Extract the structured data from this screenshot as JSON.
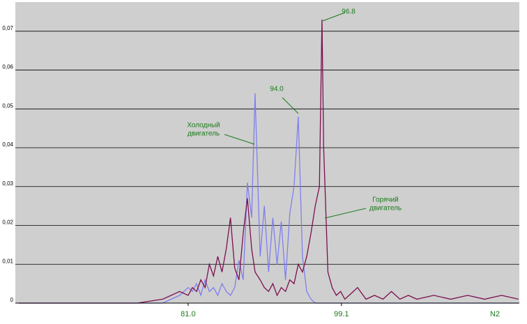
{
  "chart_data": {
    "type": "line",
    "x_label": "N2",
    "x": [
      61,
      65,
      70,
      75,
      78,
      79,
      80,
      81,
      81.5,
      82,
      82.5,
      83,
      83.5,
      84,
      84.5,
      85,
      85.5,
      86,
      86.5,
      87,
      87.5,
      88,
      88.5,
      88.9,
      89.5,
      90,
      90.5,
      91,
      91.5,
      92,
      92.5,
      93,
      93.5,
      94,
      94.5,
      95,
      95.5,
      96,
      96.5,
      96.8,
      97,
      97.5,
      98,
      98.5,
      99,
      99.5,
      100,
      101,
      102,
      103,
      104,
      105,
      106,
      107,
      108,
      110,
      112,
      114,
      116,
      118,
      120
    ],
    "series": [
      {
        "color": "#7f7fef",
        "values": [
          0,
          0,
          0,
          0,
          0,
          0.001,
          0.002,
          0.004,
          0.003,
          0.005,
          0.002,
          0.006,
          0.003,
          0.004,
          0.002,
          0.005,
          0.003,
          0.002,
          0.004,
          0.011,
          0.006,
          0.031,
          0.022,
          0.054,
          0.012,
          0.025,
          0.008,
          0.022,
          0.01,
          0.021,
          0.006,
          0.023,
          0.03,
          0.048,
          0.012,
          0.003,
          0.001,
          0,
          0,
          0,
          0,
          0,
          0,
          0,
          0,
          0,
          0,
          0,
          0,
          0,
          0,
          0,
          0,
          0,
          0,
          0,
          0,
          0,
          0,
          0,
          0
        ]
      },
      {
        "color": "#7b0f4f",
        "values": [
          0,
          0,
          0,
          0,
          0.001,
          0.002,
          0.003,
          0.002,
          0.004,
          0.003,
          0.006,
          0.004,
          0.01,
          0.007,
          0.012,
          0.008,
          0.014,
          0.022,
          0.009,
          0.006,
          0.018,
          0.027,
          0.014,
          0.008,
          0.006,
          0.004,
          0.003,
          0.005,
          0.002,
          0.004,
          0.003,
          0.006,
          0.005,
          0.01,
          0.008,
          0.012,
          0.018,
          0.025,
          0.03,
          0.073,
          0.04,
          0.008,
          0.004,
          0.002,
          0.003,
          0.001,
          0.002,
          0.004,
          0.001,
          0.002,
          0.001,
          0.003,
          0.001,
          0.002,
          0.001,
          0.002,
          0.001,
          0.002,
          0.001,
          0.002,
          0.001
        ]
      }
    ],
    "xlim": [
      60.6,
      120.1
    ],
    "xticks": [
      {
        "value": 81,
        "label": "81.0"
      },
      99.1
    ],
    "ylim": [
      0,
      0.0775
    ],
    "yticks": [
      0,
      {
        "value": 0.01,
        "label": "0,01"
      },
      {
        "value": 0.02,
        "label": "0,02"
      },
      {
        "value": 0.03,
        "label": "0,03"
      },
      {
        "value": 0.04,
        "label": "0,04"
      },
      {
        "value": 0.05,
        "label": "0,05"
      },
      {
        "value": 0.06,
        "label": "0,06"
      },
      {
        "value": 0.07,
        "label": "0,07"
      }
    ],
    "grid": true,
    "background": "#cfcfcf",
    "annotations": [
      {
        "lines": [
          "96.8"
        ]
      },
      {
        "lines": [
          "94.0"
        ]
      },
      {
        "lines": [
          "Холодный",
          "двигатель"
        ]
      },
      {
        "lines": [
          "Горячий",
          "двигатель"
        ]
      }
    ]
  }
}
